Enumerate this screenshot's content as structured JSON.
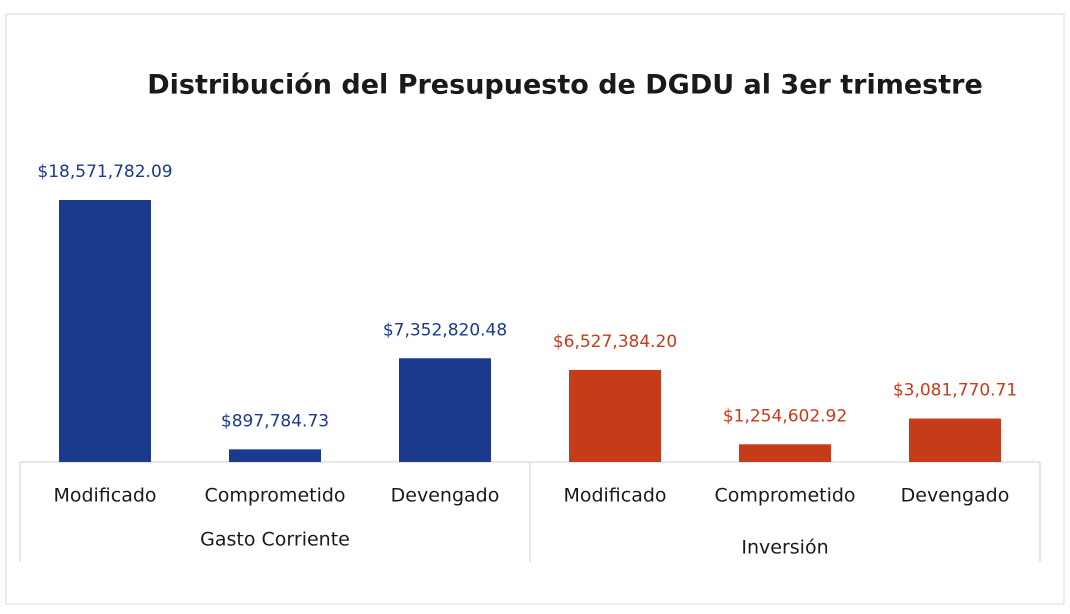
{
  "chart_data": {
    "type": "bar",
    "title": "Distribución del Presupuesto de DGDU al 3er trimestre",
    "categories": [
      "Modificado",
      "Comprometido",
      "Devengado"
    ],
    "series": [
      {
        "name": "Gasto Corriente",
        "color": "#1b3a8e",
        "values": [
          18571782.09,
          897784.73,
          7352820.48
        ],
        "value_labels": [
          "$18,571,782.09",
          "$897,784.73",
          "$7,352,820.48"
        ]
      },
      {
        "name": "Inversión",
        "color": "#c63c1b",
        "values": [
          6527384.2,
          1254602.92,
          3081770.71
        ],
        "value_labels": [
          "$6,527,384.20",
          "$1,254,602.92",
          "$3,081,770.71"
        ]
      }
    ]
  }
}
